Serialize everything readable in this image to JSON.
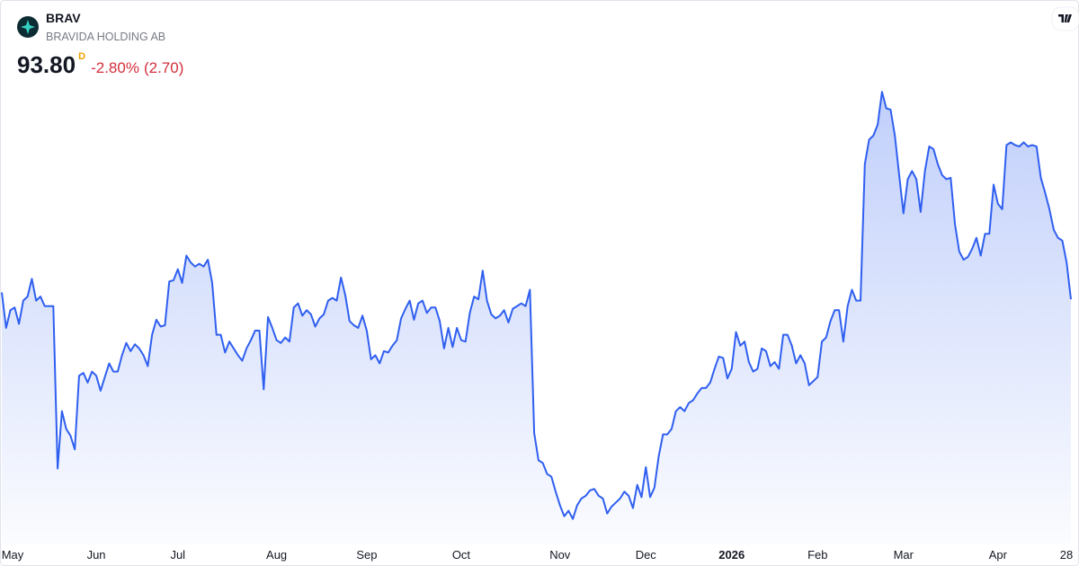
{
  "chart_data": {
    "type": "area",
    "title": "BRAV",
    "subtitle": "BRAVIDA HOLDING AB",
    "price": "93.80",
    "price_marker": "D",
    "change_percent": "-2.80%",
    "change": "(2.70)",
    "color": "#2f5ff0",
    "ylim": [
      75.9,
      113.1
    ],
    "xlim": [
      0,
      249
    ],
    "xticks": [
      {
        "value": 2,
        "label": "May"
      },
      {
        "value": 22,
        "label": "Jun"
      },
      {
        "value": 41,
        "label": "Jul"
      },
      {
        "value": 64,
        "label": "Aug"
      },
      {
        "value": 85,
        "label": "Sep"
      },
      {
        "value": 107,
        "label": "Oct"
      },
      {
        "value": 130,
        "label": "Nov"
      },
      {
        "value": 150,
        "label": "Dec"
      },
      {
        "value": 170,
        "label": "2026",
        "bold": true
      },
      {
        "value": 190,
        "label": "Feb"
      },
      {
        "value": 210,
        "label": "Mar"
      },
      {
        "value": 232,
        "label": "Apr"
      },
      {
        "value": 249,
        "label": "28"
      }
    ],
    "values": [
      94.3,
      91.7,
      93.0,
      93.2,
      92.0,
      93.7,
      94.0,
      95.3,
      93.7,
      94.0,
      93.3,
      93.3,
      93.3,
      81.4,
      85.6,
      84.3,
      83.8,
      82.8,
      88.2,
      88.4,
      87.7,
      88.5,
      88.2,
      87.1,
      88.1,
      89.1,
      88.5,
      88.5,
      89.7,
      90.6,
      90.0,
      90.5,
      90.2,
      89.7,
      88.9,
      91.2,
      92.3,
      91.8,
      91.9,
      95.1,
      95.2,
      96.0,
      95.0,
      97.0,
      96.5,
      96.2,
      96.4,
      96.2,
      96.7,
      95.0,
      91.2,
      91.2,
      89.9,
      90.7,
      90.2,
      89.7,
      89.3,
      90.2,
      90.8,
      91.5,
      91.5,
      87.2,
      92.5,
      91.7,
      90.8,
      90.6,
      91.0,
      90.7,
      93.2,
      93.5,
      92.6,
      93.0,
      92.7,
      91.8,
      92.4,
      92.7,
      93.7,
      93.9,
      93.7,
      95.4,
      94.1,
      92.2,
      91.9,
      91.7,
      92.6,
      91.5,
      89.4,
      89.7,
      89.1,
      90.0,
      89.9,
      90.4,
      90.8,
      92.4,
      93.1,
      93.7,
      92.3,
      93.5,
      93.7,
      92.8,
      93.2,
      93.2,
      92.2,
      90.2,
      91.7,
      90.3,
      91.7,
      90.8,
      90.7,
      92.8,
      94.0,
      93.8,
      95.9,
      93.7,
      92.7,
      92.4,
      92.6,
      93.0,
      92.1,
      93.1,
      93.3,
      93.5,
      93.3,
      94.5,
      84.0,
      82.0,
      81.8,
      81.0,
      80.8,
      79.7,
      78.7,
      77.9,
      78.3,
      77.7,
      78.7,
      79.2,
      79.4,
      79.8,
      79.9,
      79.4,
      79.2,
      78.1,
      78.6,
      78.9,
      79.2,
      79.7,
      79.4,
      78.5,
      80.2,
      79.3,
      81.5,
      79.3,
      80.0,
      82.3,
      83.9,
      83.9,
      84.3,
      85.6,
      85.9,
      85.6,
      86.2,
      86.4,
      86.9,
      87.3,
      87.3,
      87.7,
      88.7,
      89.6,
      89.5,
      88.0,
      88.7,
      91.4,
      90.4,
      90.7,
      89.2,
      88.5,
      88.7,
      90.2,
      90.0,
      88.9,
      89.2,
      88.7,
      91.2,
      91.2,
      90.4,
      89.1,
      89.7,
      89.1,
      87.5,
      87.8,
      88.1,
      90.7,
      91.0,
      92.2,
      93.0,
      93.0,
      90.7,
      93.3,
      94.5,
      93.7,
      93.7,
      103.7,
      105.5,
      105.8,
      106.6,
      109.0,
      107.8,
      107.7,
      105.8,
      102.9,
      100.1,
      102.6,
      103.2,
      102.6,
      100.2,
      103.2,
      105.0,
      104.8,
      103.7,
      102.9,
      102.6,
      102.7,
      99.3,
      97.3,
      96.7,
      96.9,
      97.5,
      98.3,
      97.0,
      98.6,
      98.6,
      102.2,
      100.8,
      100.4,
      105.1,
      105.3,
      105.1,
      105.0,
      105.3,
      105.0,
      105.1,
      105.0,
      102.7,
      101.6,
      100.4,
      98.9,
      98.3,
      98.1,
      96.5,
      93.8
    ]
  }
}
